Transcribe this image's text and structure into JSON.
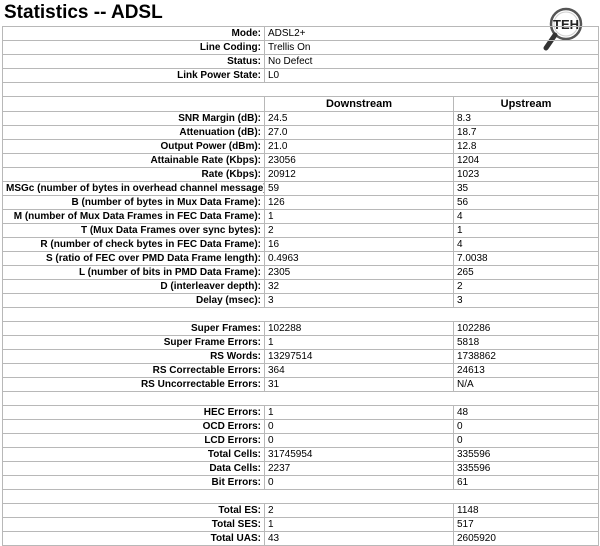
{
  "page": {
    "title": "Statistics -- ADSL"
  },
  "logo": {
    "text": "TEH",
    "icon": "magnifier-logo-icon"
  },
  "general": [
    {
      "label": "Mode:",
      "value": "ADSL2+"
    },
    {
      "label": "Line Coding:",
      "value": "Trellis On"
    },
    {
      "label": "Status:",
      "value": "No Defect"
    },
    {
      "label": "Link Power State:",
      "value": "L0"
    }
  ],
  "columns": {
    "downstream": "Downstream",
    "upstream": "Upstream"
  },
  "line": [
    {
      "label": "SNR Margin (dB):",
      "down": "24.5",
      "up": "8.3"
    },
    {
      "label": "Attenuation (dB):",
      "down": "27.0",
      "up": "18.7"
    },
    {
      "label": "Output Power (dBm):",
      "down": "21.0",
      "up": "12.8"
    },
    {
      "label": "Attainable Rate (Kbps):",
      "down": "23056",
      "up": "1204"
    },
    {
      "label": "Rate (Kbps):",
      "down": "20912",
      "up": "1023"
    },
    {
      "label": "MSGc (number of bytes in overhead channel message):",
      "down": "59",
      "up": "35"
    },
    {
      "label": "B (number of bytes in Mux Data Frame):",
      "down": "126",
      "up": "56"
    },
    {
      "label": "M (number of Mux Data Frames in FEC Data Frame):",
      "down": "1",
      "up": "4"
    },
    {
      "label": "T (Mux Data Frames over sync bytes):",
      "down": "2",
      "up": "1"
    },
    {
      "label": "R (number of check bytes in FEC Data Frame):",
      "down": "16",
      "up": "4"
    },
    {
      "label": "S (ratio of FEC over PMD Data Frame length):",
      "down": "0.4963",
      "up": "7.0038"
    },
    {
      "label": "L (number of bits in PMD Data Frame):",
      "down": "2305",
      "up": "265"
    },
    {
      "label": "D (interleaver depth):",
      "down": "32",
      "up": "2"
    },
    {
      "label": "Delay (msec):",
      "down": "3",
      "up": "3"
    }
  ],
  "frames": [
    {
      "label": "Super Frames:",
      "down": "102288",
      "up": "102286"
    },
    {
      "label": "Super Frame Errors:",
      "down": "1",
      "up": "5818"
    },
    {
      "label": "RS Words:",
      "down": "13297514",
      "up": "1738862"
    },
    {
      "label": "RS Correctable Errors:",
      "down": "364",
      "up": "24613"
    },
    {
      "label": "RS Uncorrectable Errors:",
      "down": "31",
      "up": "N/A"
    }
  ],
  "cells": [
    {
      "label": "HEC Errors:",
      "down": "1",
      "up": "48"
    },
    {
      "label": "OCD Errors:",
      "down": "0",
      "up": "0"
    },
    {
      "label": "LCD Errors:",
      "down": "0",
      "up": "0"
    },
    {
      "label": "Total Cells:",
      "down": "31745954",
      "up": "335596"
    },
    {
      "label": "Data Cells:",
      "down": "2237",
      "up": "335596"
    },
    {
      "label": "Bit Errors:",
      "down": "0",
      "up": "61"
    }
  ],
  "errored_seconds": [
    {
      "label": "Total ES:",
      "down": "2",
      "up": "1148"
    },
    {
      "label": "Total SES:",
      "down": "1",
      "up": "517"
    },
    {
      "label": "Total UAS:",
      "down": "43",
      "up": "2605920"
    }
  ]
}
